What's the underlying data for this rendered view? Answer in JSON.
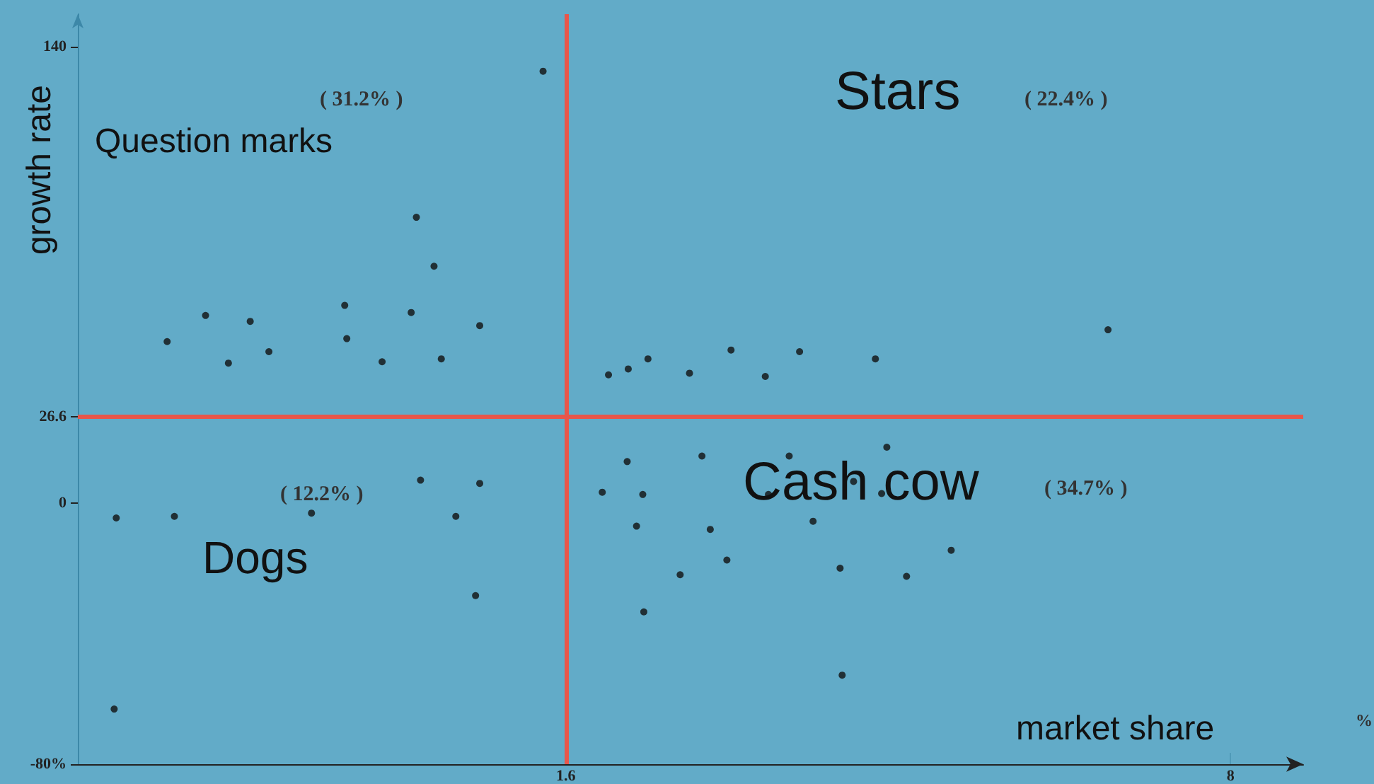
{
  "chart_data": {
    "type": "scatter",
    "xlabel": "market share",
    "ylabel": "growth rate",
    "annotations": [
      "Question marks",
      "( 31.2% )",
      "Stars",
      "( 22.4% )",
      "Dogs",
      "( 12.2% )",
      "Cash cow",
      "( 34.7% )",
      "%"
    ],
    "series": [
      {
        "color": "#111111",
        "x": [
          1.38,
          0.16,
          0.33,
          -1.87,
          -1.44,
          -0.53,
          0.11,
          -2.24,
          -1.26,
          -0.51,
          -1.65,
          -0.17,
          0.4,
          0.77,
          2.01,
          2.2,
          2.39,
          2.79,
          3.19,
          3.52,
          3.85,
          4.58,
          6.82,
          -2.73,
          -2.17,
          -0.85,
          0.2,
          0.77,
          0.54,
          0.73,
          -2.75,
          1.95,
          2.19,
          2.34,
          2.28,
          2.91,
          2.99,
          2.7,
          3.15,
          2.35,
          3.55,
          3.98,
          3.75,
          4.37,
          4.24,
          4.69,
          4.64,
          4.26,
          4.88,
          5.31
        ],
        "values": [
          132.5,
          87.7,
          72.7,
          57.6,
          55.8,
          60.7,
          58.5,
          49.6,
          46.5,
          50.5,
          43.0,
          43.4,
          44.3,
          54.5,
          39.4,
          41.2,
          44.3,
          39.9,
          47.0,
          38.9,
          46.5,
          44.3,
          53.2,
          -4.5,
          -4.0,
          -3.0,
          7.1,
          6.1,
          -4.0,
          -28.3,
          -63.1,
          3.4,
          12.8,
          2.7,
          -7.0,
          14.5,
          -8.0,
          -21.9,
          -17.4,
          -33.3,
          2.7,
          -5.5,
          14.5,
          6.7,
          -19.9,
          17.2,
          3.0,
          -52.7,
          -22.4,
          -14.4
        ]
      }
    ],
    "xlim": [
      -3.1,
      8.7
    ],
    "ylim": [
      -80,
      150
    ],
    "xticks": [
      1.6,
      8
    ],
    "yticks": [
      140,
      26.6,
      0,
      {
        "value": -80,
        "label": "-80%"
      }
    ],
    "ref_lines": [
      {
        "axis": "x",
        "value": 1.6,
        "color": "#e8564a"
      },
      {
        "axis": "y",
        "value": 26.6,
        "color": "#e8564a"
      }
    ],
    "marker": "circle",
    "grid": false
  }
}
